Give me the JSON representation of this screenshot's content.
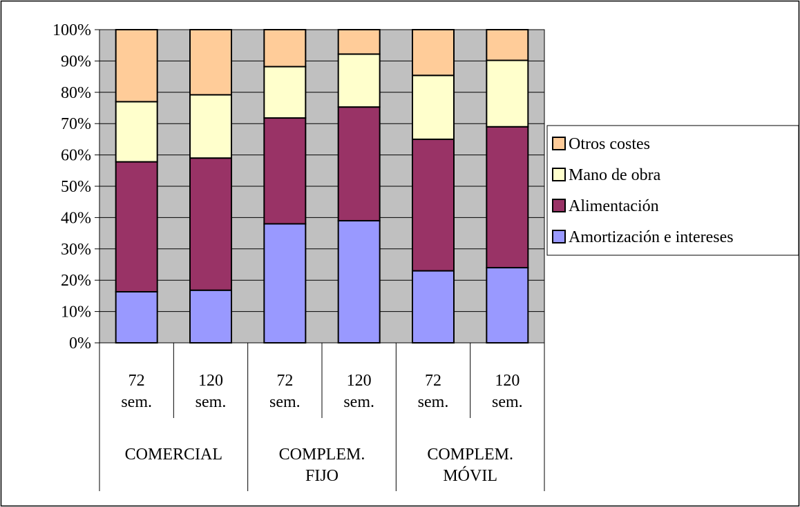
{
  "chart_data": {
    "type": "bar",
    "stacked": true,
    "percent_stacked": true,
    "categories": [
      {
        "group": "COMERCIAL",
        "sub": "72 sem."
      },
      {
        "group": "COMERCIAL",
        "sub": "120 sem."
      },
      {
        "group": "COMPLEM. FIJO",
        "sub": "72 sem."
      },
      {
        "group": "COMPLEM. FIJO",
        "sub": "120 sem."
      },
      {
        "group": "COMPLEM. MÓVIL",
        "sub": "72 sem."
      },
      {
        "group": "COMPLEM. MÓVIL",
        "sub": "120 sem."
      }
    ],
    "groups": [
      {
        "label_lines": [
          "COMERCIAL"
        ]
      },
      {
        "label_lines": [
          "COMPLEM.",
          "FIJO"
        ]
      },
      {
        "label_lines": [
          "COMPLEM.",
          "MÓVIL"
        ]
      }
    ],
    "sub_label_lines": [
      [
        "72",
        "sem."
      ],
      [
        "120",
        "sem."
      ],
      [
        "72",
        "sem."
      ],
      [
        "120",
        "sem."
      ],
      [
        "72",
        "sem."
      ],
      [
        "120",
        "sem."
      ]
    ],
    "series": [
      {
        "name": "Amortización e intereses",
        "color": "#9999ff",
        "values": [
          16.3,
          16.8,
          38.0,
          39.0,
          23.0,
          24.0
        ]
      },
      {
        "name": "Alimentación",
        "color": "#993366",
        "values": [
          41.5,
          42.2,
          33.8,
          36.3,
          42.0,
          45.0
        ]
      },
      {
        "name": "Mano de obra",
        "color": "#ffffcc",
        "values": [
          19.2,
          20.2,
          16.4,
          16.9,
          20.4,
          21.2
        ]
      },
      {
        "name": "Otros costes",
        "color": "#ffcc99",
        "values": [
          23.0,
          20.8,
          11.8,
          7.8,
          14.6,
          9.8
        ]
      }
    ],
    "legend_order": [
      "Otros costes",
      "Mano de obra",
      "Alimentación",
      "Amortización e intereses"
    ],
    "y_ticks": [
      "0%",
      "10%",
      "20%",
      "30%",
      "40%",
      "50%",
      "60%",
      "70%",
      "80%",
      "90%",
      "100%"
    ],
    "ylim": [
      0,
      100
    ],
    "grid": true,
    "plot_background": "#c0c0c0",
    "legend_position": "right",
    "title": "",
    "xlabel": "",
    "ylabel": ""
  }
}
